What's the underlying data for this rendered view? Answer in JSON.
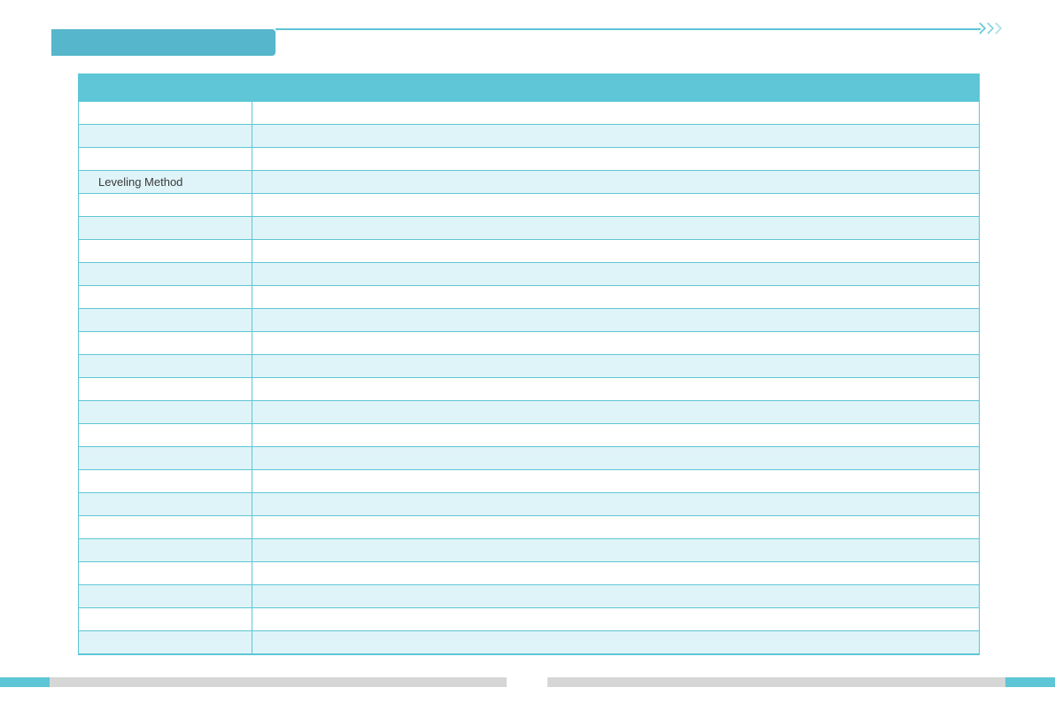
{
  "colors": {
    "accent": "#5ec6d6",
    "accent_dark": "#55b6cc",
    "row_alt": "#dff4f8",
    "footer_gray": "#d6d6d6",
    "chevron_light": "#a9dfe8"
  },
  "header": {
    "section_title": ""
  },
  "spec_table": {
    "title": "",
    "rows": [
      {
        "label": "",
        "value": ""
      },
      {
        "label": "",
        "value": ""
      },
      {
        "label": "",
        "value": ""
      },
      {
        "label": "Leveling Method",
        "value": ""
      },
      {
        "label": "",
        "value": ""
      },
      {
        "label": "",
        "value": ""
      },
      {
        "label": "",
        "value": ""
      },
      {
        "label": "",
        "value": ""
      },
      {
        "label": "",
        "value": ""
      },
      {
        "label": "",
        "value": ""
      },
      {
        "label": "",
        "value": ""
      },
      {
        "label": "",
        "value": ""
      },
      {
        "label": "",
        "value": ""
      },
      {
        "label": "",
        "value": ""
      },
      {
        "label": "",
        "value": ""
      },
      {
        "label": "",
        "value": ""
      },
      {
        "label": "",
        "value": ""
      },
      {
        "label": "",
        "value": ""
      },
      {
        "label": "",
        "value": ""
      },
      {
        "label": "",
        "value": ""
      },
      {
        "label": "",
        "value": ""
      },
      {
        "label": "",
        "value": ""
      },
      {
        "label": "",
        "value": ""
      },
      {
        "label": "",
        "value": ""
      }
    ]
  },
  "icons": {
    "next": "chevron-right-triple-icon"
  }
}
